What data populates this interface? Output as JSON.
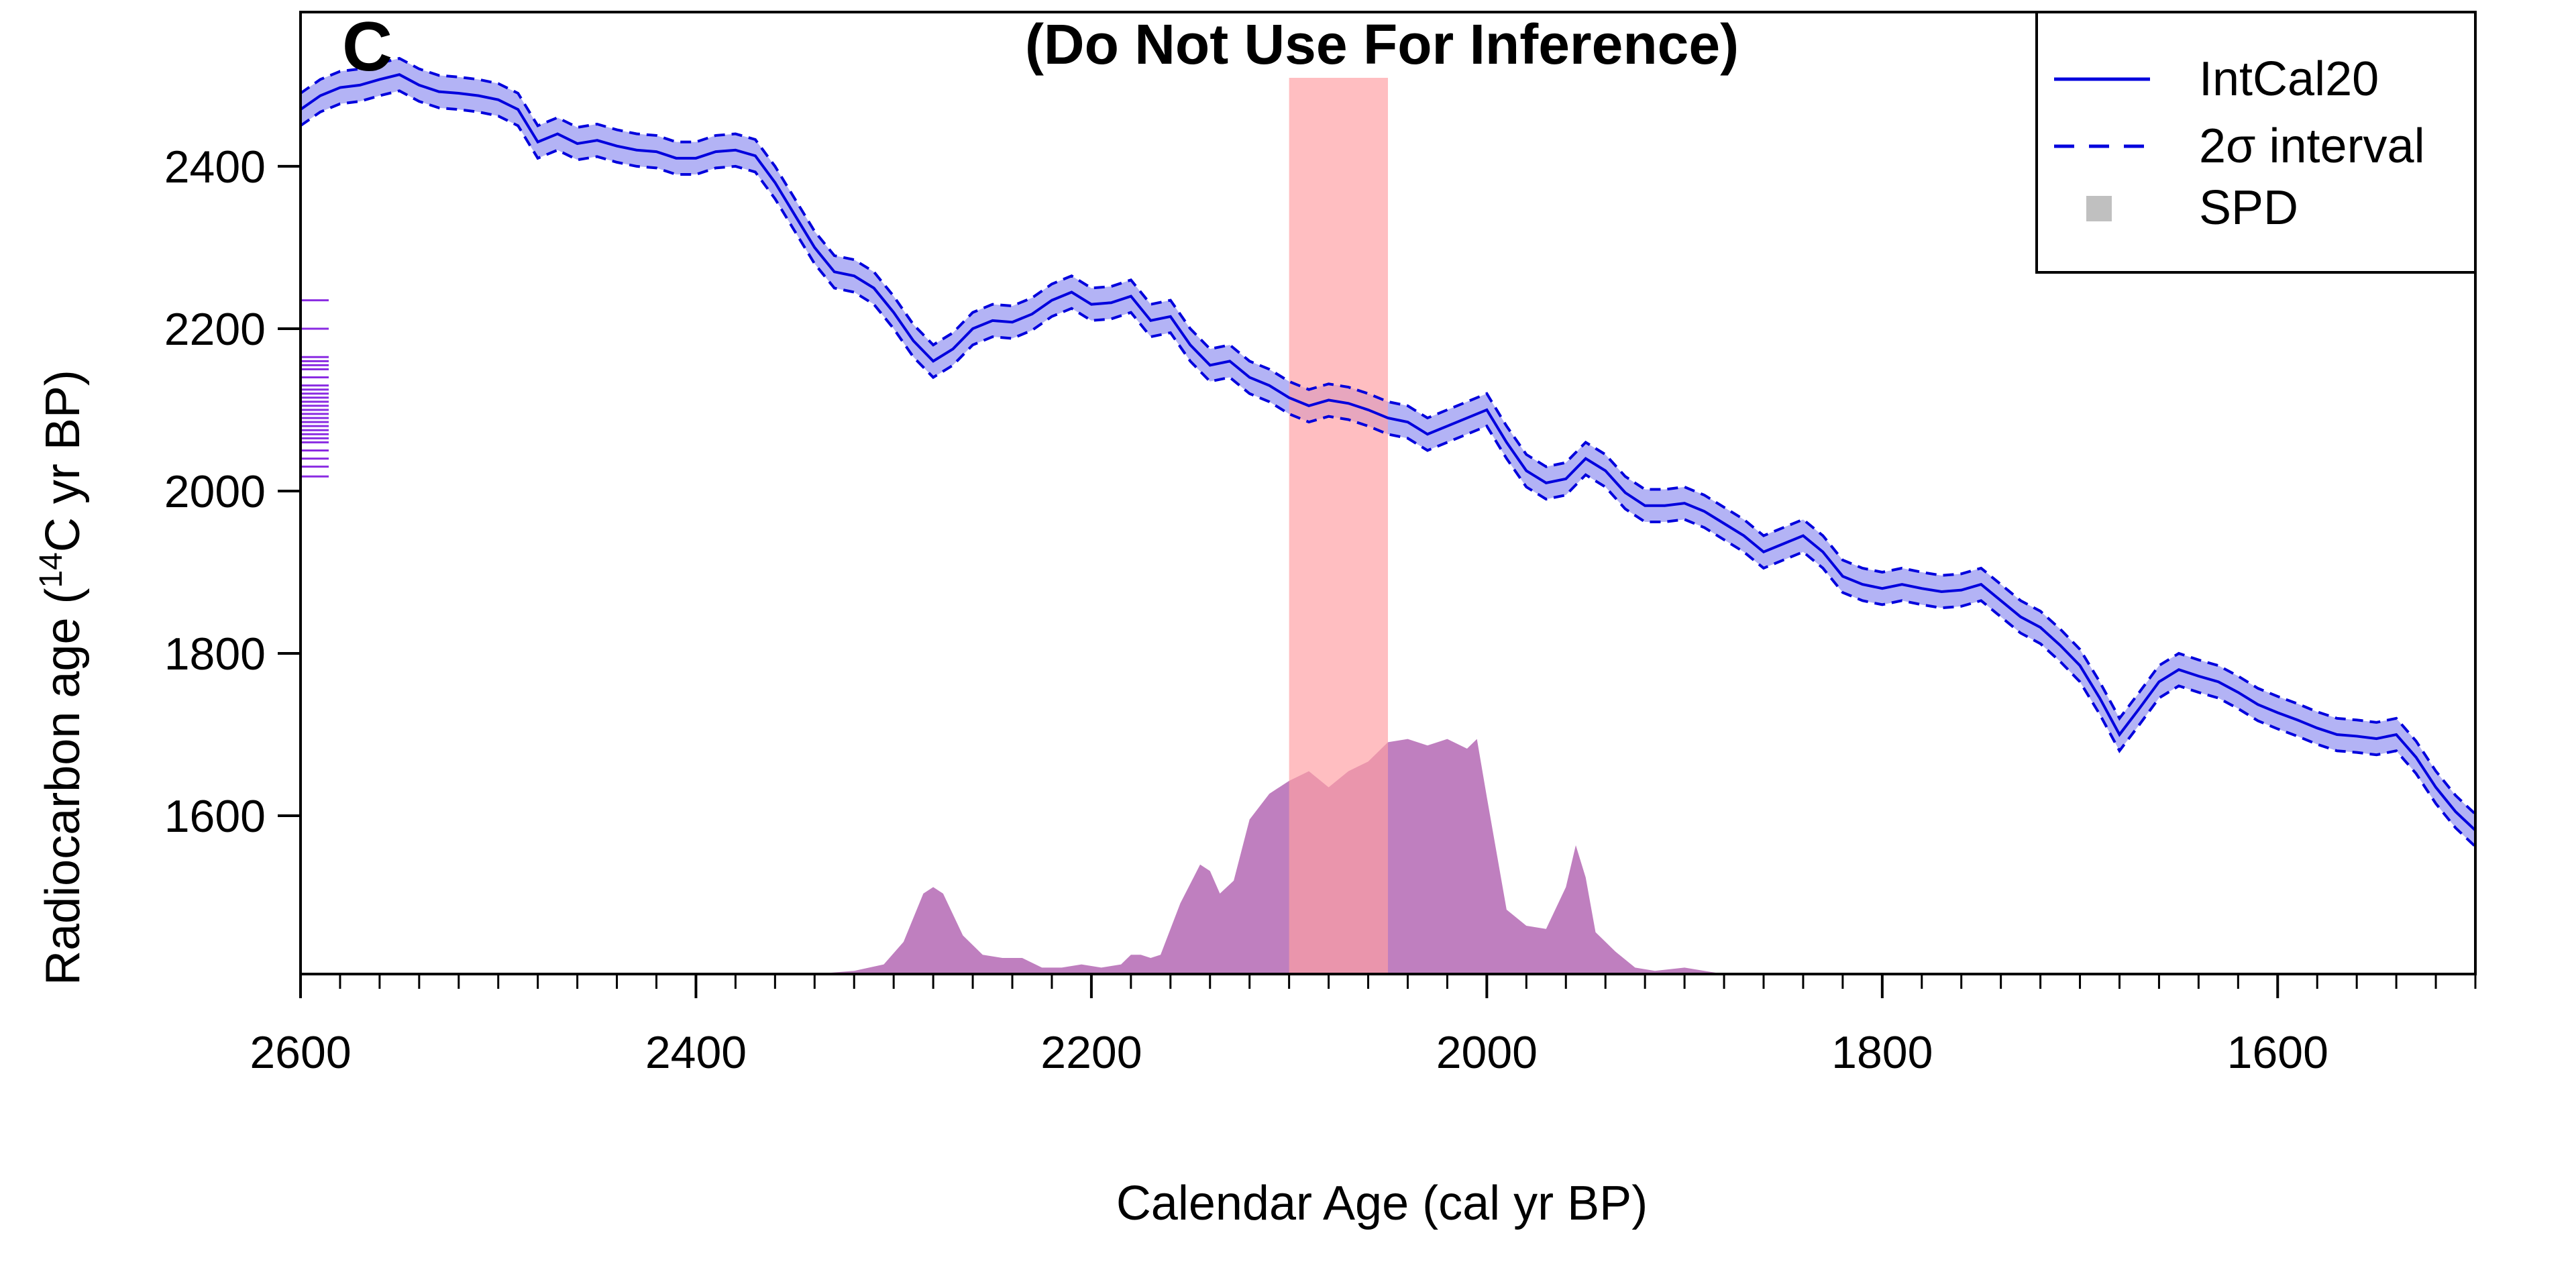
{
  "chart_data": {
    "type": "line",
    "panel_label": "C",
    "title": "(Do Not Use For Inference)",
    "xlabel": "Calendar Age (cal yr BP)",
    "ylabel_main": "Radiocarbon age (",
    "ylabel_sup": "14",
    "ylabel_tail": "C yr BP)",
    "xlim": [
      2600,
      1500
    ],
    "ylim": [
      1405,
      2590
    ],
    "x_ticks": [
      2600,
      2400,
      2200,
      2000,
      1800,
      1600
    ],
    "y_ticks": [
      1600,
      1800,
      2000,
      2200,
      2400
    ],
    "highlight_range": [
      2100,
      2050
    ],
    "legend": {
      "position": "top-right",
      "entries": [
        {
          "label": "IntCal20",
          "style": "solid-line"
        },
        {
          "label": "2σ interval",
          "style": "dashed-line"
        },
        {
          "label": "SPD",
          "style": "grey-square"
        }
      ]
    },
    "series": [
      {
        "name": "IntCal20",
        "x": [
          2600,
          2590,
          2580,
          2570,
          2560,
          2550,
          2540,
          2530,
          2520,
          2510,
          2500,
          2490,
          2480,
          2470,
          2460,
          2450,
          2440,
          2430,
          2420,
          2410,
          2400,
          2390,
          2380,
          2370,
          2360,
          2350,
          2340,
          2330,
          2320,
          2310,
          2300,
          2290,
          2280,
          2270,
          2260,
          2250,
          2240,
          2230,
          2220,
          2210,
          2200,
          2190,
          2180,
          2170,
          2160,
          2150,
          2140,
          2130,
          2120,
          2110,
          2100,
          2090,
          2080,
          2070,
          2060,
          2050,
          2040,
          2030,
          2020,
          2010,
          2000,
          1990,
          1980,
          1970,
          1960,
          1950,
          1940,
          1930,
          1920,
          1910,
          1900,
          1890,
          1880,
          1870,
          1860,
          1850,
          1840,
          1830,
          1820,
          1810,
          1800,
          1790,
          1780,
          1770,
          1760,
          1750,
          1740,
          1730,
          1720,
          1710,
          1700,
          1690,
          1680,
          1670,
          1660,
          1650,
          1640,
          1630,
          1620,
          1610,
          1600,
          1590,
          1580,
          1570,
          1560,
          1550,
          1540,
          1530,
          1520,
          1510,
          1500
        ],
        "y": [
          2470,
          2487,
          2497,
          2500,
          2507,
          2513,
          2500,
          2492,
          2490,
          2487,
          2482,
          2470,
          2430,
          2440,
          2428,
          2432,
          2425,
          2420,
          2418,
          2410,
          2410,
          2418,
          2420,
          2413,
          2380,
          2340,
          2300,
          2270,
          2265,
          2250,
          2220,
          2185,
          2160,
          2175,
          2200,
          2210,
          2208,
          2218,
          2235,
          2245,
          2230,
          2232,
          2240,
          2210,
          2215,
          2180,
          2155,
          2160,
          2140,
          2130,
          2115,
          2105,
          2112,
          2108,
          2100,
          2090,
          2085,
          2070,
          2080,
          2090,
          2100,
          2060,
          2025,
          2010,
          2015,
          2040,
          2025,
          1998,
          1982,
          1982,
          1985,
          1975,
          1960,
          1945,
          1925,
          1935,
          1945,
          1925,
          1895,
          1885,
          1880,
          1885,
          1880,
          1876,
          1878,
          1885,
          1865,
          1845,
          1832,
          1810,
          1785,
          1745,
          1700,
          1732,
          1765,
          1780,
          1772,
          1765,
          1752,
          1737,
          1727,
          1718,
          1708,
          1700,
          1698,
          1695,
          1700,
          1672,
          1635,
          1605,
          1582
        ]
      },
      {
        "name": "SPD",
        "x": [
          2340,
          2320,
          2305,
          2295,
          2285,
          2280,
          2275,
          2265,
          2255,
          2245,
          2235,
          2225,
          2215,
          2205,
          2195,
          2185,
          2180,
          2175,
          2170,
          2165,
          2155,
          2145,
          2140,
          2135,
          2128,
          2120,
          2110,
          2100,
          2090,
          2080,
          2070,
          2060,
          2050,
          2040,
          2030,
          2020,
          2010,
          2005,
          2000,
          1990,
          1980,
          1970,
          1960,
          1955,
          1950,
          1945,
          1935,
          1925,
          1915,
          1900,
          1890,
          1880
        ],
        "y": [
          0,
          0.01,
          0.03,
          0.1,
          0.25,
          0.27,
          0.25,
          0.12,
          0.06,
          0.05,
          0.05,
          0.02,
          0.02,
          0.03,
          0.02,
          0.03,
          0.06,
          0.06,
          0.05,
          0.06,
          0.22,
          0.34,
          0.32,
          0.25,
          0.29,
          0.48,
          0.56,
          0.6,
          0.63,
          0.58,
          0.63,
          0.66,
          0.72,
          0.73,
          0.71,
          0.73,
          0.7,
          0.73,
          0.55,
          0.2,
          0.15,
          0.14,
          0.27,
          0.4,
          0.3,
          0.13,
          0.07,
          0.02,
          0.01,
          0.02,
          0.01,
          0
        ]
      }
    ],
    "interval_halfwidth_14C": 20,
    "rug_ticks_y": [
      2235,
      2200,
      2165,
      2160,
      2155,
      2150,
      2140,
      2130,
      2125,
      2120,
      2115,
      2110,
      2105,
      2100,
      2095,
      2090,
      2085,
      2080,
      2075,
      2070,
      2065,
      2060,
      2050,
      2040,
      2030,
      2018
    ],
    "colors": {
      "curve": "#0000dd",
      "band": "#b3b3f5",
      "spd_fill": "#bf7fbf",
      "highlight": "#ff9fa3",
      "rug": "#8a2be2",
      "axis": "#000000"
    }
  }
}
